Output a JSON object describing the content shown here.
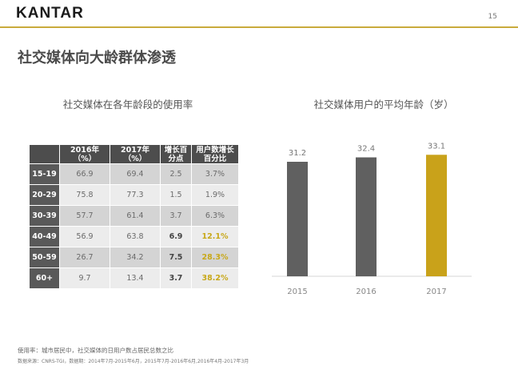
{
  "header": {
    "logo": "KANTAR",
    "page_number": "15"
  },
  "title": "社交媒体向大龄群体渗透",
  "left_panel": {
    "subtitle": "社交媒体在各年龄段的使用率",
    "table": {
      "headers": [
        "",
        "2016年（%）",
        "2017年（%）",
        "增长百分点",
        "用户数增长百分比"
      ],
      "rows": [
        {
          "age": "15-19",
          "v2016": "66.9",
          "v2017": "69.4",
          "growth": "2.5",
          "user_growth": "3.7%"
        },
        {
          "age": "20-29",
          "v2016": "75.8",
          "v2017": "77.3",
          "growth": "1.5",
          "user_growth": "1.9%"
        },
        {
          "age": "30-39",
          "v2016": "57.7",
          "v2017": "61.4",
          "growth": "3.7",
          "user_growth": "6.3%"
        },
        {
          "age": "40-49",
          "v2016": "56.9",
          "v2017": "63.8",
          "growth": "6.9",
          "user_growth": "12.1%"
        },
        {
          "age": "50-59",
          "v2016": "26.7",
          "v2017": "34.2",
          "growth": "7.5",
          "user_growth": "28.3%"
        },
        {
          "age": "60+",
          "v2016": "9.7",
          "v2017": "13.4",
          "growth": "3.7",
          "user_growth": "38.2%"
        }
      ]
    }
  },
  "chart_data": {
    "type": "bar",
    "title": "社交媒体用户的平均年龄（岁）",
    "categories": [
      "2015",
      "2016",
      "2017"
    ],
    "values": [
      31.2,
      32.4,
      33.1
    ],
    "value_labels": [
      "31.2",
      "32.4",
      "33.1"
    ],
    "bar_colors": [
      "#606060",
      "#606060",
      "#c9a21a"
    ],
    "ylim": [
      0,
      36
    ],
    "grid": false,
    "legend": "none"
  },
  "footer": {
    "definition": "使用率：城市居民中，社交媒体的日用户数占居民总数之比",
    "source": "数据来源：CNRS-TGI，数据期：2014年7月-2015年6月，2015年7月-2016年6月,2016年4月-2017年3月"
  }
}
